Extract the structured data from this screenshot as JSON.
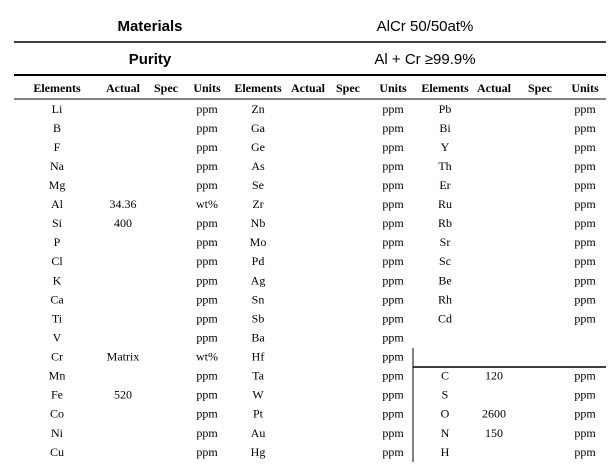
{
  "header": {
    "materials_label": "Materials",
    "materials_value": "AlCr 50/50at%",
    "purity_label": "Purity",
    "purity_value": "Al + Cr ≥99.9%"
  },
  "table": {
    "columns": [
      "Elements",
      "Actual",
      "Spec",
      "Units",
      "Elements",
      "Actual",
      "Spec",
      "Units",
      "Elements",
      "Actual",
      "Spec",
      "Units"
    ],
    "groups": [
      {
        "rows": [
          {
            "element": "Li",
            "units": "ppm"
          },
          {
            "element": "B",
            "units": "ppm"
          },
          {
            "element": "F",
            "units": "ppm"
          },
          {
            "element": "Na",
            "units": "ppm"
          },
          {
            "element": "Mg",
            "units": "ppm"
          },
          {
            "element": "Al",
            "actual": 34.36,
            "units": "wt%"
          },
          {
            "element": "Si",
            "actual": 400,
            "units": "ppm"
          },
          {
            "element": "P",
            "units": "ppm"
          },
          {
            "element": "Cl",
            "units": "ppm"
          },
          {
            "element": "K",
            "units": "ppm"
          },
          {
            "element": "Ca",
            "units": "ppm"
          },
          {
            "element": "Ti",
            "units": "ppm"
          },
          {
            "element": "V",
            "units": "ppm"
          },
          {
            "element": "Cr",
            "actual": "Matrix",
            "units": "wt%"
          },
          {
            "element": "Mn",
            "units": "ppm"
          },
          {
            "element": "Fe",
            "actual": 520,
            "units": "ppm"
          },
          {
            "element": "Co",
            "units": "ppm"
          },
          {
            "element": "Ni",
            "units": "ppm"
          },
          {
            "element": "Cu",
            "units": "ppm"
          }
        ]
      },
      {
        "rows": [
          {
            "element": "Zn",
            "units": "ppm"
          },
          {
            "element": "Ga",
            "units": "ppm"
          },
          {
            "element": "Ge",
            "units": "ppm"
          },
          {
            "element": "As",
            "units": "ppm"
          },
          {
            "element": "Se",
            "units": "ppm"
          },
          {
            "element": "Zr",
            "units": "ppm"
          },
          {
            "element": "Nb",
            "units": "ppm"
          },
          {
            "element": "Mo",
            "units": "ppm"
          },
          {
            "element": "Pd",
            "units": "ppm"
          },
          {
            "element": "Ag",
            "units": "ppm"
          },
          {
            "element": "Sn",
            "units": "ppm"
          },
          {
            "element": "Sb",
            "units": "ppm"
          },
          {
            "element": "Ba",
            "units": "ppm"
          },
          {
            "element": "Hf",
            "units": "ppm"
          },
          {
            "element": "Ta",
            "units": "ppm"
          },
          {
            "element": "W",
            "units": "ppm"
          },
          {
            "element": "Pt",
            "units": "ppm"
          },
          {
            "element": "Au",
            "units": "ppm"
          },
          {
            "element": "Hg",
            "units": "ppm"
          }
        ]
      },
      {
        "rows": [
          {
            "element": "Pb",
            "units": "ppm"
          },
          {
            "element": "Bi",
            "units": "ppm"
          },
          {
            "element": "Y",
            "units": "ppm"
          },
          {
            "element": "Th",
            "units": "ppm"
          },
          {
            "element": "Er",
            "units": "ppm"
          },
          {
            "element": "Ru",
            "units": "ppm"
          },
          {
            "element": "Rb",
            "units": "ppm"
          },
          {
            "element": "Sr",
            "units": "ppm"
          },
          {
            "element": "Sc",
            "units": "ppm"
          },
          {
            "element": "Be",
            "units": "ppm"
          },
          {
            "element": "Rh",
            "units": "ppm"
          },
          {
            "element": "Cd",
            "units": "ppm"
          }
        ]
      },
      {
        "rows": [
          {
            "element": "C",
            "actual": 120,
            "units": "ppm"
          },
          {
            "element": "S",
            "units": "ppm"
          },
          {
            "element": "O",
            "actual": 2600,
            "units": "ppm"
          },
          {
            "element": "N",
            "actual": 150,
            "units": "ppm"
          },
          {
            "element": "H",
            "units": "ppm"
          }
        ]
      }
    ]
  }
}
